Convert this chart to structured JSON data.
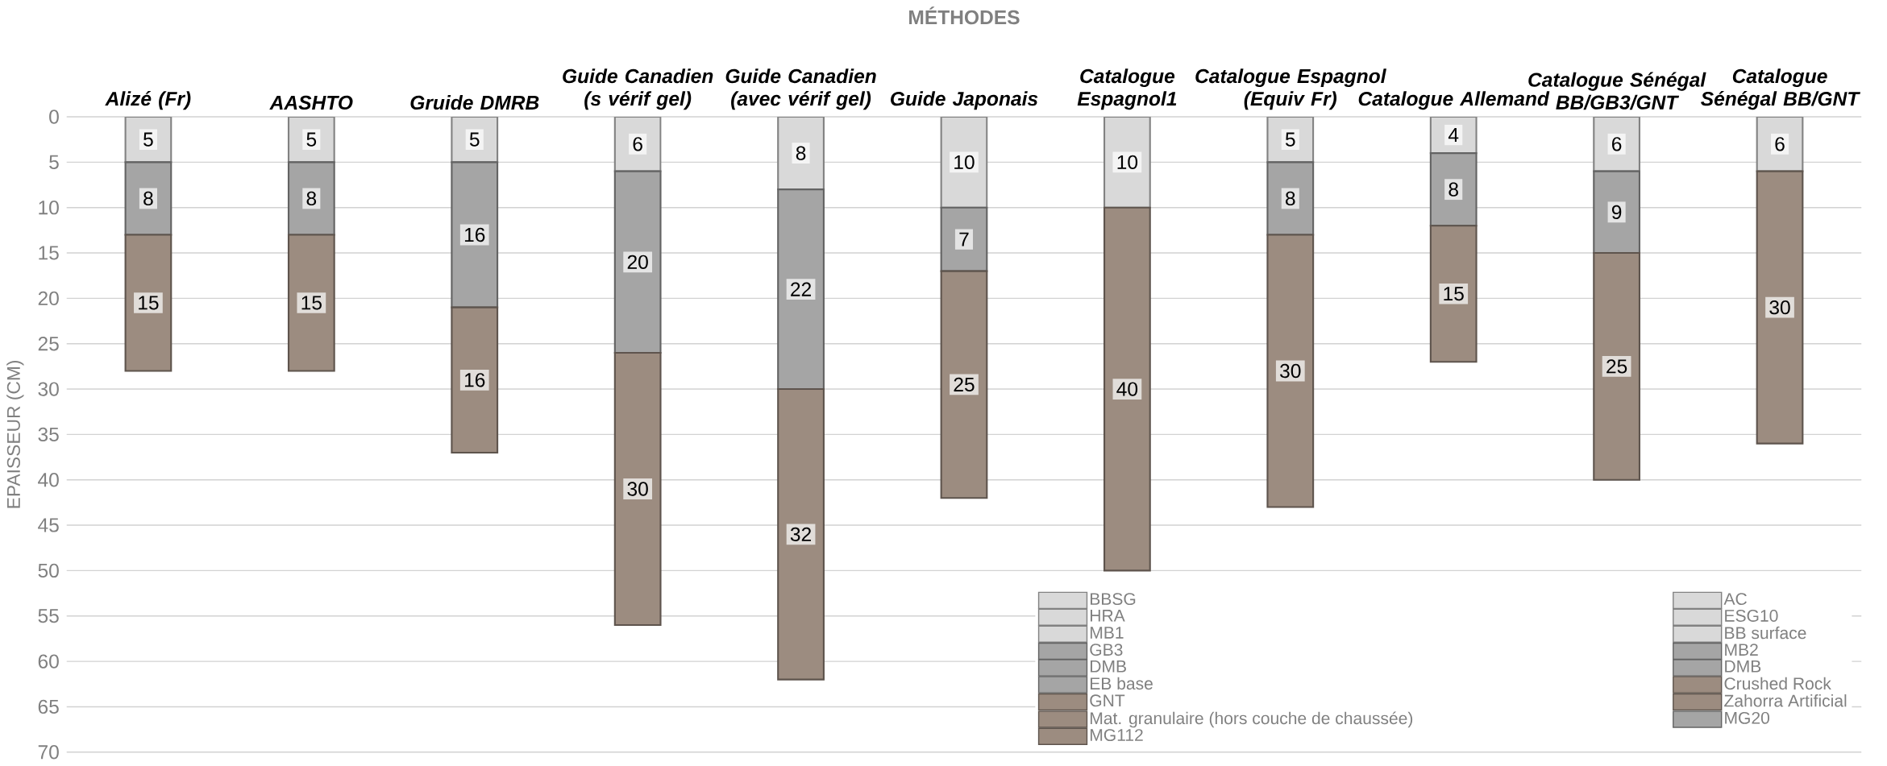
{
  "chart_data": {
    "type": "bar",
    "stacked": true,
    "title": "MÉTHODES",
    "ylabel": "EPAISSEUR (CM)",
    "categories": [
      "Alizé (Fr)",
      "AASHTO",
      "Gruide DMRB",
      "Guide Canadien (s vérif gel)",
      "Guide Canadien (avec vérif gel)",
      "Guide Japonais",
      "Catalogue Espagnol1",
      "Catalogue Espagnol (Equiv Fr)",
      "Catalogue Allemand",
      "Catalogue Sénégal BB/GB3/GNT",
      "Catalogue Sénégal BB/GNT"
    ],
    "ylim": [
      70,
      0
    ],
    "yticks": [
      0,
      5,
      10,
      15,
      20,
      25,
      30,
      35,
      40,
      45,
      50,
      55,
      60,
      65,
      70
    ],
    "grid": "y",
    "legend": "bottom right",
    "data_labels": true,
    "series": [
      {
        "name": "BBSG",
        "color": "#d9d9d9",
        "values": [
          5,
          null,
          null,
          null,
          null,
          null,
          null,
          null,
          null,
          null,
          null
        ]
      },
      {
        "name": "AC",
        "color": "#d9d9d9",
        "values": [
          null,
          5,
          null,
          6,
          8,
          10,
          null,
          null,
          null,
          null,
          null
        ]
      },
      {
        "name": "HRA",
        "color": "#d9d9d9",
        "values": [
          null,
          null,
          5,
          null,
          null,
          null,
          null,
          null,
          null,
          null,
          null
        ]
      },
      {
        "name": "ESG10",
        "color": "#d9d9d9",
        "values": [
          null,
          null,
          null,
          null,
          null,
          null,
          10,
          5,
          null,
          null,
          null
        ]
      },
      {
        "name": "MB1",
        "color": "#d9d9d9",
        "values": [
          null,
          null,
          null,
          null,
          null,
          null,
          null,
          null,
          4,
          null,
          null
        ]
      },
      {
        "name": "BB surface",
        "color": "#d9d9d9",
        "values": [
          null,
          null,
          null,
          null,
          null,
          null,
          null,
          null,
          null,
          6,
          6
        ]
      },
      {
        "name": "GB3",
        "color": "#a5a5a5",
        "values": [
          8,
          null,
          null,
          null,
          null,
          null,
          null,
          null,
          null,
          9,
          null
        ]
      },
      {
        "name": "MB2",
        "color": "#a5a5a5",
        "values": [
          null,
          null,
          null,
          null,
          null,
          null,
          null,
          8,
          null,
          null,
          null
        ]
      },
      {
        "name": "DMB",
        "color": "#a5a5a5",
        "values": [
          null,
          8,
          null,
          null,
          null,
          null,
          null,
          null,
          8,
          null,
          null
        ]
      },
      {
        "name": "DMB",
        "color": "#a5a5a5",
        "values": [
          null,
          null,
          16,
          null,
          null,
          null,
          null,
          null,
          null,
          null,
          null
        ]
      },
      {
        "name": "EB base",
        "color": "#a5a5a5",
        "values": [
          null,
          null,
          null,
          null,
          null,
          7,
          null,
          null,
          null,
          null,
          null
        ]
      },
      {
        "name": "Crushed Rock",
        "color": "#9c8c80",
        "values": [
          null,
          15,
          null,
          null,
          null,
          25,
          null,
          null,
          15,
          null,
          null
        ]
      },
      {
        "name": "GNT",
        "color": "#9c8c80",
        "values": [
          15,
          null,
          null,
          null,
          null,
          null,
          null,
          null,
          null,
          25,
          30
        ]
      },
      {
        "name": "Zahorra Artificial",
        "color": "#9c8c80",
        "values": [
          null,
          null,
          null,
          null,
          null,
          null,
          40,
          30,
          null,
          null,
          null
        ]
      },
      {
        "name": "Mat. granulaire (hors couche de chaussée)",
        "color": "#9c8c80",
        "values": [
          null,
          null,
          16,
          null,
          null,
          null,
          null,
          null,
          null,
          null,
          null
        ]
      },
      {
        "name": "MG20",
        "color": "#a5a5a5",
        "values": [
          null,
          null,
          null,
          20,
          22,
          null,
          null,
          null,
          null,
          null,
          null
        ]
      },
      {
        "name": "MG112",
        "color": "#9c8c80",
        "values": [
          null,
          null,
          null,
          30,
          32,
          null,
          null,
          null,
          null,
          null,
          null
        ]
      }
    ]
  }
}
